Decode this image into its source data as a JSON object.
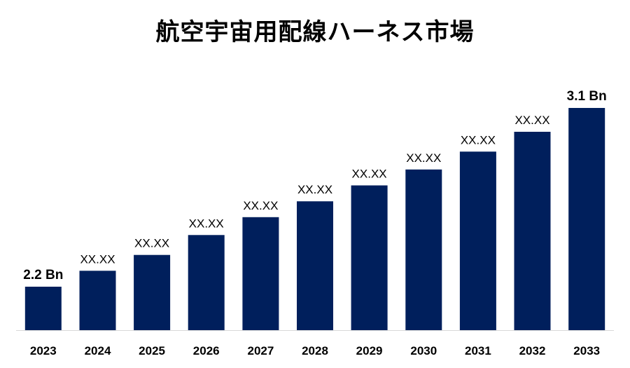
{
  "title": "航空宇宙用配線ハーネス市場",
  "colors": {
    "bar": "#001f5c",
    "axis": "#d9d9d9"
  },
  "chart_data": {
    "type": "bar",
    "categories": [
      "2023",
      "2024",
      "2025",
      "2026",
      "2027",
      "2028",
      "2029",
      "2030",
      "2031",
      "2032",
      "2033"
    ],
    "values": [
      2.2,
      2.28,
      2.36,
      2.46,
      2.55,
      2.63,
      2.71,
      2.79,
      2.88,
      2.98,
      3.1
    ],
    "labels": [
      "2.2 Bn",
      "XX.XX",
      "XX.XX",
      "XX.XX",
      "XX.XX",
      "XX.XX",
      "XX.XX",
      "XX.XX",
      "XX.XX",
      "XX.XX",
      "3.1 Bn"
    ],
    "bold_labels": [
      true,
      false,
      false,
      false,
      false,
      false,
      false,
      false,
      false,
      false,
      true
    ],
    "title": "航空宇宙用配線ハーネス市場",
    "xlabel": "",
    "ylabel": "",
    "grid": false,
    "legend": "none"
  }
}
